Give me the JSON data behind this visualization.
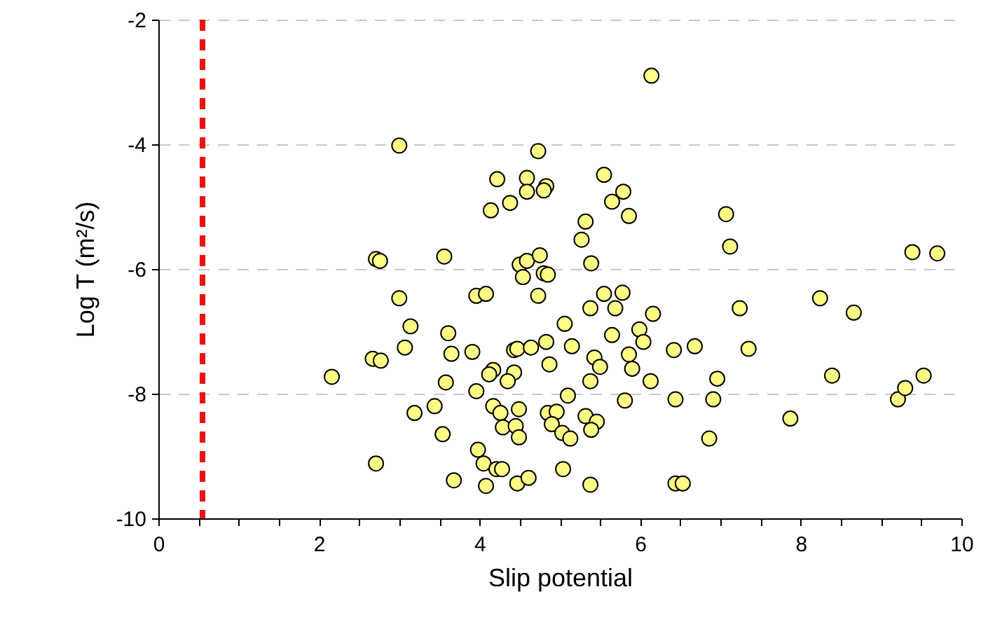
{
  "chart_data": {
    "type": "scatter",
    "xlabel": "Slip potential",
    "ylabel": "Log T (m²/s)",
    "xlim": [
      0,
      10
    ],
    "ylim": [
      -10,
      -2
    ],
    "xticks": [
      0,
      {
        "value": 0.5,
        "label": null
      },
      {
        "value": 1,
        "label": null
      },
      {
        "value": 1.5,
        "label": null
      },
      2,
      {
        "value": 2.5,
        "label": null
      },
      {
        "value": 3,
        "label": null
      },
      {
        "value": 3.5,
        "label": null
      },
      4,
      {
        "value": 4.5,
        "label": null
      },
      {
        "value": 5,
        "label": null
      },
      {
        "value": 5.5,
        "label": null
      },
      6,
      {
        "value": 6.5,
        "label": null
      },
      {
        "value": 7,
        "label": null
      },
      {
        "value": 7.5,
        "label": null
      },
      8,
      {
        "value": 8.5,
        "label": null
      },
      {
        "value": 9,
        "label": null
      },
      {
        "value": 9.5,
        "label": null
      },
      10
    ],
    "yticks": [
      -10,
      -8,
      -6,
      -4,
      -2
    ],
    "grid": "y",
    "marker": "circle",
    "ref_lines": [
      {
        "axis": "x",
        "value": 0.55,
        "color": "#ee1111",
        "line_style": "dashed"
      }
    ],
    "series": [
      {
        "color": "#fdfd86",
        "x": [
          3.0,
          4.22,
          4.59,
          4.59,
          4.14,
          4.38,
          2.71,
          2.76,
          3.56,
          4.5,
          4.59,
          4.54,
          3.0,
          3.96,
          4.08,
          3.14,
          3.61,
          3.07,
          3.65,
          3.91,
          4.43,
          4.47,
          2.67,
          2.77,
          2.16,
          4.17,
          4.12,
          4.43,
          4.35,
          3.58,
          3.96,
          3.44,
          3.19,
          4.17,
          4.26,
          4.49,
          4.29,
          4.45,
          4.49,
          3.54,
          3.98,
          4.05,
          4.21,
          4.28,
          2.71,
          3.68,
          4.08,
          4.47,
          4.61,
          6.14,
          4.73,
          4.83,
          4.8,
          5.55,
          5.79,
          5.65,
          5.86,
          5.32,
          5.27,
          7.07,
          7.12,
          4.75,
          4.8,
          4.85,
          4.73,
          5.39,
          5.55,
          5.78,
          5.38,
          5.69,
          6.16,
          7.24,
          5.06,
          4.83,
          4.64,
          5.15,
          5.65,
          5.99,
          6.04,
          5.43,
          5.5,
          5.86,
          5.9,
          4.87,
          6.42,
          6.68,
          5.38,
          6.13,
          6.96,
          5.1,
          5.81,
          6.44,
          6.91,
          4.85,
          4.96,
          4.9,
          5.03,
          5.13,
          5.32,
          5.46,
          5.39,
          6.86,
          5.04,
          5.38,
          6.44,
          6.53,
          9.39,
          9.7,
          7.35,
          8.24,
          8.66,
          8.39,
          7.87,
          9.21,
          9.3,
          9.53
        ],
        "values": [
          -4.02,
          -4.56,
          -4.54,
          -4.76,
          -5.06,
          -4.94,
          -5.84,
          -5.87,
          -5.8,
          -5.93,
          -5.87,
          -6.13,
          -6.47,
          -6.43,
          -6.4,
          -6.92,
          -7.03,
          -7.26,
          -7.36,
          -7.33,
          -7.3,
          -7.28,
          -7.44,
          -7.47,
          -7.73,
          -7.62,
          -7.69,
          -7.66,
          -7.8,
          -7.82,
          -7.96,
          -8.2,
          -8.31,
          -8.2,
          -8.31,
          -8.25,
          -8.54,
          -8.52,
          -8.7,
          -8.65,
          -8.9,
          -9.12,
          -9.21,
          -9.21,
          -9.12,
          -9.39,
          -9.48,
          -9.44,
          -9.35,
          -2.9,
          -4.11,
          -4.67,
          -4.74,
          -4.49,
          -4.76,
          -4.92,
          -5.15,
          -5.24,
          -5.53,
          -5.12,
          -5.64,
          -5.78,
          -6.07,
          -6.09,
          -6.43,
          -5.91,
          -6.4,
          -6.38,
          -6.63,
          -6.63,
          -6.72,
          -6.63,
          -6.88,
          -7.17,
          -7.26,
          -7.24,
          -7.06,
          -6.97,
          -7.17,
          -7.42,
          -7.57,
          -7.37,
          -7.6,
          -7.53,
          -7.3,
          -7.24,
          -7.8,
          -7.8,
          -7.76,
          -8.03,
          -8.11,
          -8.09,
          -8.09,
          -8.31,
          -8.29,
          -8.49,
          -8.63,
          -8.72,
          -8.36,
          -8.45,
          -8.58,
          -8.72,
          -9.21,
          -9.46,
          -9.44,
          -9.44,
          -5.73,
          -5.75,
          -7.28,
          -6.47,
          -6.7,
          -7.71,
          -8.4,
          -8.09,
          -7.91,
          -7.71
        ]
      }
    ]
  }
}
